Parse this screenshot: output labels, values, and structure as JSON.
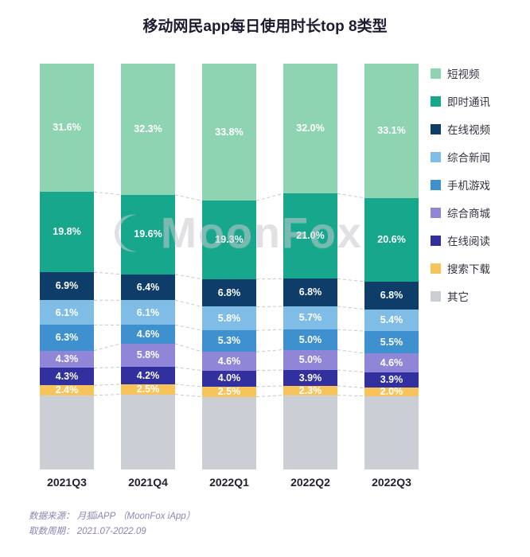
{
  "title": "移动网民app每日使用时长top 8类型",
  "watermark": "MoonFox",
  "footer": {
    "source": "数据来源： 月狐iAPP （MoonFox iApp）",
    "period": "取数周期： 2021.07-2022.09"
  },
  "chart_data": {
    "type": "bar",
    "subtype": "stacked-percentage",
    "stack_total": 100,
    "value_suffix": "%",
    "legend_position": "right",
    "categories": [
      "2021Q3",
      "2021Q4",
      "2022Q1",
      "2022Q2",
      "2022Q3"
    ],
    "series": [
      {
        "name": "短视频",
        "color": "#8ed3b2",
        "labeled": true,
        "values": [
          31.6,
          32.3,
          33.8,
          32.0,
          33.1
        ]
      },
      {
        "name": "即时通讯",
        "color": "#17a78c",
        "labeled": true,
        "values": [
          19.8,
          19.6,
          19.3,
          21.0,
          20.6
        ]
      },
      {
        "name": "在线视频",
        "color": "#0d3d68",
        "labeled": true,
        "values": [
          6.9,
          6.4,
          6.8,
          6.8,
          6.8
        ]
      },
      {
        "name": "综合新闻",
        "color": "#7fbce6",
        "labeled": true,
        "values": [
          6.1,
          6.1,
          5.8,
          5.7,
          5.4
        ]
      },
      {
        "name": "手机游戏",
        "color": "#3f90ce",
        "labeled": true,
        "values": [
          6.3,
          4.6,
          5.3,
          5.0,
          5.5
        ]
      },
      {
        "name": "综合商城",
        "color": "#8f86d8",
        "labeled": true,
        "values": [
          4.3,
          5.8,
          4.6,
          5.0,
          4.6
        ]
      },
      {
        "name": "在线阅读",
        "color": "#322f9e",
        "labeled": true,
        "values": [
          4.3,
          4.2,
          4.0,
          3.9,
          3.9
        ]
      },
      {
        "name": "搜索下载",
        "color": "#f6c45a",
        "labeled": true,
        "values": [
          2.4,
          2.5,
          2.5,
          2.3,
          2.0
        ]
      },
      {
        "name": "其它",
        "color": "#cbced4",
        "labeled": false,
        "values": [
          18.3,
          18.5,
          17.9,
          18.3,
          18.1
        ]
      }
    ]
  }
}
